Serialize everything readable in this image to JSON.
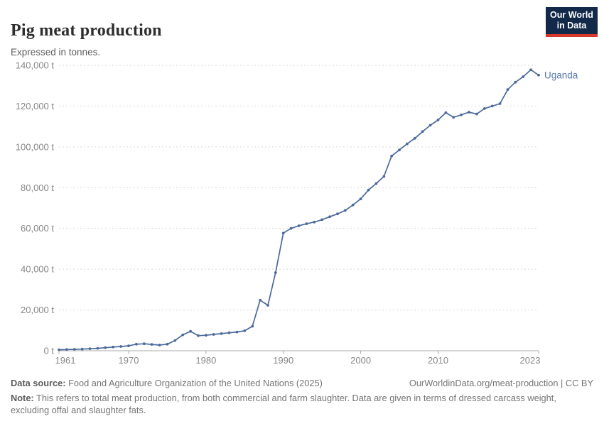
{
  "header": {
    "title": "Pig meat production",
    "subtitle": "Expressed in tonnes.",
    "logo_line1": "Our World",
    "logo_line2": "in Data"
  },
  "chart_data": {
    "type": "line",
    "title": "Pig meat production",
    "ylabel": "",
    "xlabel": "",
    "unit": "t",
    "grid": "horizontal-dashed",
    "legend_position": "end-of-line-label",
    "xlim": [
      1961,
      2023
    ],
    "ylim": [
      0,
      140000
    ],
    "x_ticks": [
      1961,
      1970,
      1980,
      1990,
      2000,
      2010,
      2023
    ],
    "y_ticks": [
      0,
      20000,
      40000,
      60000,
      80000,
      100000,
      120000,
      140000
    ],
    "y_tick_suffix": " t",
    "series": [
      {
        "name": "Uganda",
        "color": "#4c6a9c",
        "label_color": "#5878ad",
        "x": [
          1961,
          1962,
          1963,
          1964,
          1965,
          1966,
          1967,
          1968,
          1969,
          1970,
          1971,
          1972,
          1973,
          1974,
          1975,
          1976,
          1977,
          1978,
          1979,
          1980,
          1981,
          1982,
          1983,
          1984,
          1985,
          1986,
          1987,
          1988,
          1989,
          1990,
          1991,
          1992,
          1993,
          1994,
          1995,
          1996,
          1997,
          1998,
          1999,
          2000,
          2001,
          2002,
          2003,
          2004,
          2005,
          2006,
          2007,
          2008,
          2009,
          2010,
          2011,
          2012,
          2013,
          2014,
          2015,
          2016,
          2017,
          2018,
          2019,
          2020,
          2021,
          2022,
          2023
        ],
        "values": [
          500,
          600,
          700,
          800,
          1000,
          1200,
          1500,
          1800,
          2100,
          2400,
          3200,
          3400,
          3100,
          2800,
          3200,
          5000,
          7800,
          9500,
          7400,
          7600,
          8000,
          8400,
          8800,
          9200,
          9800,
          12000,
          24800,
          22300,
          38300,
          57700,
          60000,
          61300,
          62300,
          63100,
          64300,
          65700,
          67100,
          68800,
          71500,
          74500,
          78800,
          82000,
          85500,
          95500,
          98500,
          101500,
          104200,
          107500,
          110600,
          113200,
          116800,
          114500,
          115700,
          117000,
          116100,
          118800,
          120000,
          121200,
          128100,
          131700,
          134400,
          137800,
          135200
        ]
      }
    ]
  },
  "footer": {
    "source_label": "Data source:",
    "source_text": " Food and Agriculture Organization of the United Nations (2025)",
    "link_text": "OurWorldinData.org/meat-production | CC BY",
    "note_label": "Note:",
    "note_text": " This refers to total meat production, from both commercial and farm slaughter. Data are given in terms of dressed carcass weight, excluding offal and slaughter fats."
  },
  "colors": {
    "gridline": "#d9d9d9",
    "axis_line": "#a8a8a8",
    "tick_text": "#878787",
    "title_text": "#2d2d2d",
    "logo_bg": "#12294a",
    "logo_accent": "#d7382c"
  }
}
